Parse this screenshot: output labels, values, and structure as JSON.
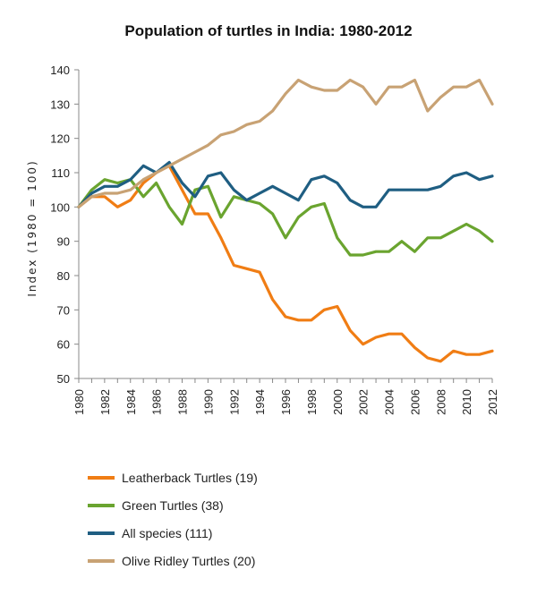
{
  "chart_data": {
    "type": "line",
    "title": "Population of turtles in India: 1980-2012",
    "ylabel": "Index (1980 = 100)",
    "xlabel": "",
    "ylim": [
      50,
      140
    ],
    "yticks": [
      50,
      60,
      70,
      80,
      90,
      100,
      110,
      120,
      130,
      140
    ],
    "xlim": [
      1980,
      2012
    ],
    "xticks": [
      1980,
      1982,
      1984,
      1986,
      1988,
      1990,
      1992,
      1994,
      1996,
      1998,
      2000,
      2002,
      2004,
      2006,
      2008,
      2010,
      2012
    ],
    "x": [
      1980,
      1981,
      1982,
      1983,
      1984,
      1985,
      1986,
      1987,
      1988,
      1989,
      1990,
      1991,
      1992,
      1993,
      1994,
      1995,
      1996,
      1997,
      1998,
      1999,
      2000,
      2001,
      2002,
      2003,
      2004,
      2005,
      2006,
      2007,
      2008,
      2009,
      2010,
      2011,
      2012
    ],
    "grid": false,
    "legend_position": "bottom",
    "series": [
      {
        "name": "Leatherback Turtles (19)",
        "color": "#f07d14",
        "values": [
          100,
          103,
          103,
          100,
          102,
          107,
          110,
          112,
          105,
          98,
          98,
          91,
          83,
          82,
          81,
          73,
          68,
          67,
          67,
          70,
          71,
          64,
          60,
          62,
          63,
          63,
          59,
          56,
          55,
          58,
          57,
          57,
          58
        ]
      },
      {
        "name": "Green Turtles (38)",
        "color": "#6aa42f",
        "values": [
          100,
          105,
          108,
          107,
          108,
          103,
          107,
          100,
          95,
          105,
          106,
          97,
          103,
          102,
          101,
          98,
          91,
          97,
          100,
          101,
          91,
          86,
          86,
          87,
          87,
          90,
          87,
          91,
          91,
          93,
          95,
          93,
          90
        ]
      },
      {
        "name": "All species (111)",
        "color": "#1f5e82",
        "values": [
          100,
          104,
          106,
          106,
          108,
          112,
          110,
          113,
          107,
          103,
          109,
          110,
          105,
          102,
          104,
          106,
          104,
          102,
          108,
          109,
          107,
          102,
          100,
          100,
          105,
          105,
          105,
          105,
          106,
          109,
          110,
          108,
          109
        ]
      },
      {
        "name": "Olive Ridley Turtles (20)",
        "color": "#c8a274",
        "values": [
          100,
          103,
          104,
          104,
          105,
          108,
          110,
          112,
          114,
          116,
          118,
          121,
          122,
          124,
          125,
          128,
          133,
          137,
          135,
          134,
          134,
          137,
          135,
          130,
          135,
          135,
          137,
          128,
          132,
          135,
          135,
          137,
          130
        ]
      }
    ]
  }
}
